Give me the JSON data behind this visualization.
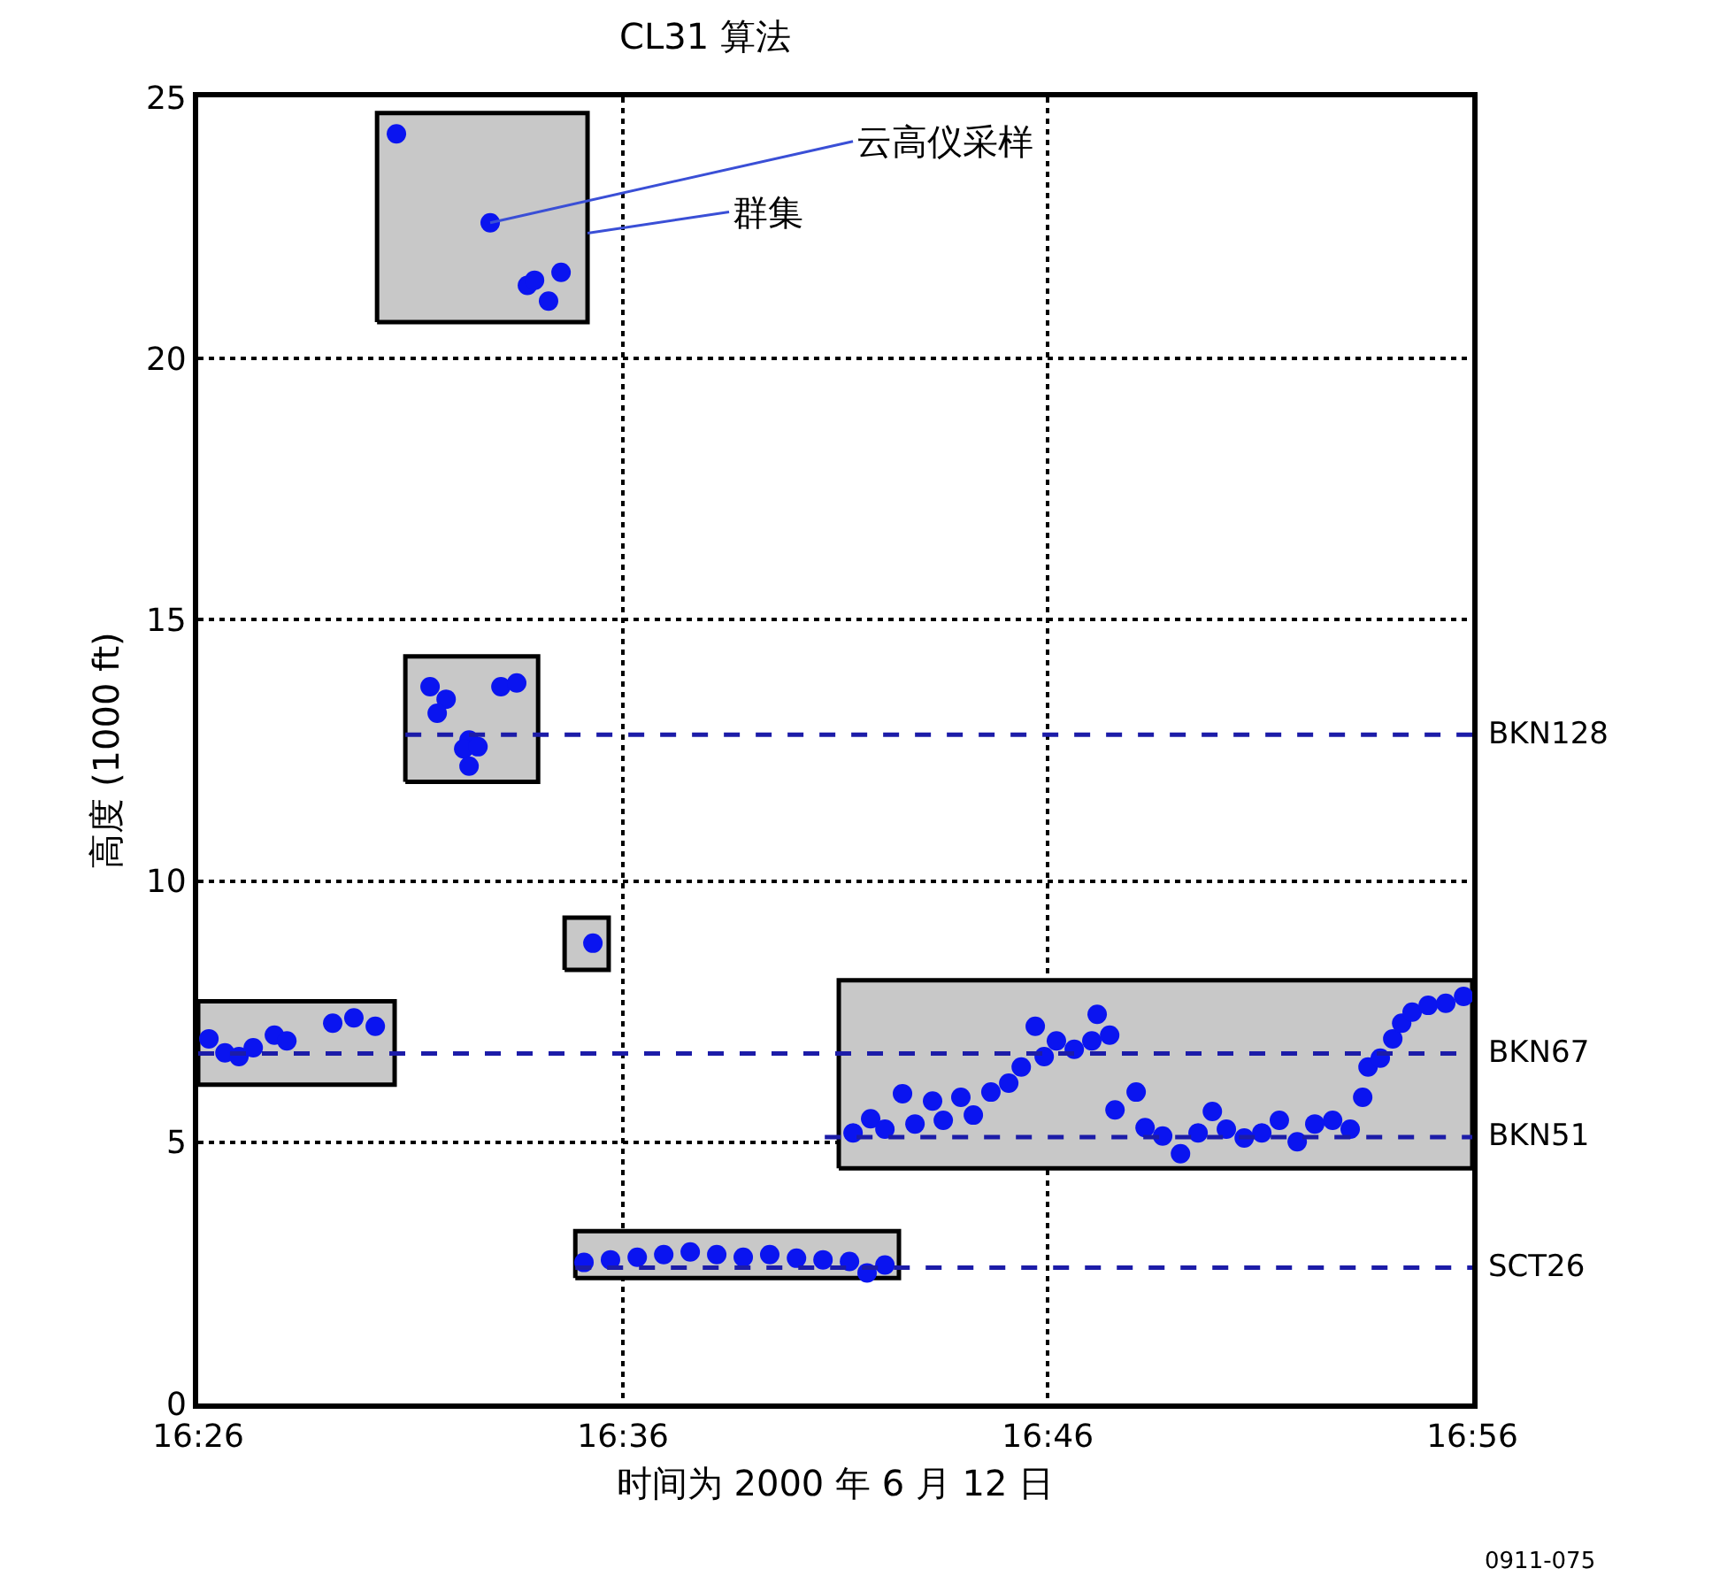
{
  "chart_data": {
    "type": "scatter",
    "title": "CL31 算法",
    "xlabel": "时间为 2000 年 6 月 12 日",
    "ylabel": "高度 (1000 ft)",
    "xlim": [
      16.4333,
      16.9333
    ],
    "xticks": [
      {
        "value": 16.4333,
        "label": "16:26"
      },
      {
        "value": 16.6,
        "label": "16:36"
      },
      {
        "value": 16.7667,
        "label": "16:46"
      },
      {
        "value": 16.9333,
        "label": "16:56"
      }
    ],
    "ylim": [
      0,
      25
    ],
    "yticks": [
      0,
      5,
      10,
      15,
      20,
      25
    ],
    "grid": true,
    "legend": false,
    "marker": "circle",
    "series": [
      {
        "type": "area",
        "color": "#c8c8c8",
        "marker": "none",
        "x": [
          16.5035,
          16.5861,
          16.5861,
          16.5035,
          16.5035
        ],
        "values": [
          20.7,
          20.7,
          24.7,
          24.7,
          20.7
        ]
      },
      {
        "type": "area",
        "color": "#c8c8c8",
        "marker": "none",
        "x": [
          16.5146,
          16.5667,
          16.5667,
          16.5146,
          16.5146
        ],
        "values": [
          11.9,
          11.9,
          14.3,
          14.3,
          11.9
        ]
      },
      {
        "type": "area",
        "color": "#c8c8c8",
        "marker": "none",
        "x": [
          16.5771,
          16.5944,
          16.5944,
          16.5771,
          16.5771
        ],
        "values": [
          8.3,
          8.3,
          9.3,
          9.3,
          8.3
        ]
      },
      {
        "type": "area",
        "color": "#c8c8c8",
        "marker": "none",
        "x": [
          16.4333,
          16.5104,
          16.5104,
          16.4333,
          16.4333
        ],
        "values": [
          6.1,
          6.1,
          7.7,
          7.7,
          6.1
        ]
      },
      {
        "type": "area",
        "color": "#c8c8c8",
        "marker": "none",
        "x": [
          16.5813,
          16.7083,
          16.7083,
          16.5813,
          16.5813
        ],
        "values": [
          2.4,
          2.4,
          3.3,
          3.3,
          2.4
        ]
      },
      {
        "type": "area",
        "color": "#c8c8c8",
        "marker": "none",
        "x": [
          16.6847,
          16.9333,
          16.9333,
          16.6847,
          16.6847
        ],
        "values": [
          4.5,
          4.5,
          8.1,
          8.1,
          4.5
        ]
      },
      {
        "type": "line",
        "name": "BKN128",
        "color": "#1c1ca8",
        "line_style": "dashed",
        "marker": "none",
        "x": [
          16.5146,
          16.9333
        ],
        "values": [
          12.8,
          12.8
        ]
      },
      {
        "type": "line",
        "name": "BKN67",
        "color": "#1c1ca8",
        "line_style": "dashed",
        "marker": "none",
        "x": [
          16.4333,
          16.9333
        ],
        "values": [
          6.7,
          6.7
        ]
      },
      {
        "type": "line",
        "name": "BKN51",
        "color": "#1c1ca8",
        "line_style": "dashed",
        "marker": "none",
        "x": [
          16.6792,
          16.9333
        ],
        "values": [
          5.1,
          5.1
        ]
      },
      {
        "type": "line",
        "name": "SCT26",
        "color": "#1c1ca8",
        "line_style": "dashed",
        "marker": "none",
        "x": [
          16.5813,
          16.9333
        ],
        "values": [
          2.6,
          2.6
        ]
      },
      {
        "type": "scatter",
        "color": "#0a14f0",
        "x": [
          16.5111,
          16.5479,
          16.5625,
          16.5708,
          16.5757,
          16.5653,
          16.5243,
          16.5306,
          16.5271,
          16.5396,
          16.5375,
          16.5431,
          16.5396,
          16.5521,
          16.5583,
          16.5882,
          16.4375,
          16.4438,
          16.4493,
          16.4549,
          16.4632,
          16.4681,
          16.4861,
          16.4944,
          16.5028,
          16.5847,
          16.5951,
          16.6056,
          16.616,
          16.6264,
          16.6368,
          16.6472,
          16.6576,
          16.6681,
          16.6785,
          16.6889,
          16.6958,
          16.7028,
          16.6903,
          16.6972,
          16.7028,
          16.7097,
          16.7146,
          16.7215,
          16.7257,
          16.7326,
          16.7375,
          16.7444,
          16.7514,
          16.7563,
          16.7618,
          16.7653,
          16.7701,
          16.7771,
          16.784,
          16.7861,
          16.791,
          16.7931,
          16.8014,
          16.8049,
          16.8118,
          16.8188,
          16.8257,
          16.8313,
          16.8368,
          16.8438,
          16.8507,
          16.8576,
          16.8646,
          16.8715,
          16.8785,
          16.8854,
          16.8903,
          16.8924,
          16.8972,
          16.9021,
          16.9056,
          16.9097,
          16.916,
          16.9229,
          16.9299
        ],
        "values": [
          24.3,
          22.6,
          21.4,
          21.1,
          21.65,
          21.5,
          13.72,
          13.48,
          13.21,
          12.7,
          12.53,
          12.57,
          12.2,
          13.72,
          13.79,
          8.81,
          6.98,
          6.71,
          6.64,
          6.81,
          7.05,
          6.94,
          7.28,
          7.38,
          7.22,
          2.7,
          2.75,
          2.8,
          2.85,
          2.9,
          2.85,
          2.8,
          2.85,
          2.78,
          2.75,
          2.72,
          2.5,
          2.65,
          5.18,
          5.45,
          5.25,
          5.93,
          5.35,
          5.79,
          5.42,
          5.86,
          5.52,
          5.96,
          6.13,
          6.44,
          7.22,
          6.64,
          6.94,
          6.78,
          6.94,
          7.45,
          7.05,
          5.62,
          5.96,
          5.28,
          5.12,
          4.78,
          5.18,
          5.59,
          5.25,
          5.08,
          5.18,
          5.42,
          5.01,
          5.35,
          5.42,
          5.25,
          5.86,
          6.44,
          6.61,
          6.98,
          7.28,
          7.49,
          7.62,
          7.66,
          7.79
        ]
      }
    ],
    "annotations": [
      {
        "text": "云高仪采样",
        "x": 16.5479,
        "y": 22.6
      },
      {
        "text": "群集",
        "x": 16.5861,
        "y": 22.4
      },
      "0911-075"
    ]
  }
}
